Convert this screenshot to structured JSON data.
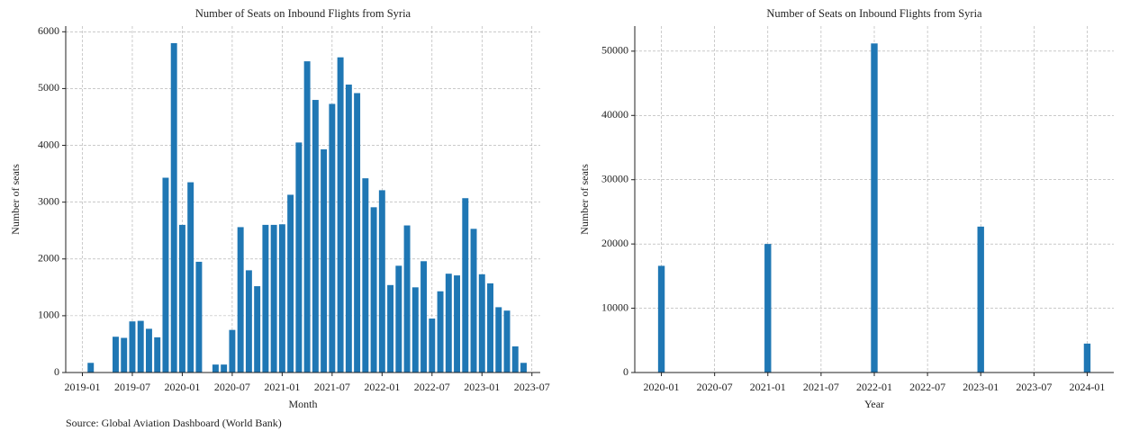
{
  "chart_data": [
    {
      "type": "bar",
      "title": "Number of Seats on Inbound Flights from Syria",
      "x_label": "Month",
      "y_label": "Number of seats",
      "source": "Source: Global Aviation Dashboard (World Bank)",
      "x": [
        "2019-02",
        "2019-05",
        "2019-06",
        "2019-07",
        "2019-08",
        "2019-09",
        "2019-10",
        "2019-11",
        "2019-12",
        "2020-01",
        "2020-02",
        "2020-03",
        "2020-05",
        "2020-06",
        "2020-07",
        "2020-08",
        "2020-09",
        "2020-10",
        "2020-11",
        "2020-12",
        "2021-01",
        "2021-02",
        "2021-03",
        "2021-04",
        "2021-05",
        "2021-06",
        "2021-07",
        "2021-08",
        "2021-09",
        "2021-10",
        "2021-11",
        "2021-12",
        "2022-01",
        "2022-02",
        "2022-03",
        "2022-04",
        "2022-05",
        "2022-06",
        "2022-07",
        "2022-08",
        "2022-09",
        "2022-10",
        "2022-11",
        "2022-12",
        "2023-01",
        "2023-02",
        "2023-03",
        "2023-04",
        "2023-05",
        "2023-06"
      ],
      "values": [
        170,
        630,
        610,
        900,
        910,
        770,
        620,
        3430,
        5800,
        2600,
        3350,
        1950,
        140,
        140,
        750,
        2560,
        1800,
        1520,
        2600,
        2600,
        2610,
        3130,
        4050,
        5480,
        4800,
        3930,
        4730,
        5550,
        5070,
        4920,
        3420,
        2910,
        3210,
        1540,
        1880,
        2590,
        1500,
        1960,
        950,
        1430,
        1740,
        1710,
        3070,
        2530,
        1730,
        1570,
        1150,
        1090,
        460,
        170
      ],
      "color": "#1f77b4",
      "xlim": [
        "2018-11",
        "2023-08"
      ],
      "xticks": [
        "2019-01",
        "2019-07",
        "2020-01",
        "2020-07",
        "2021-01",
        "2021-07",
        "2022-01",
        "2022-07",
        "2023-01",
        "2023-07"
      ],
      "ylim": [
        0,
        6100
      ],
      "yticks": [
        0,
        1000,
        2000,
        3000,
        4000,
        5000,
        6000
      ],
      "grid": true
    },
    {
      "type": "bar",
      "title": "Number of Seats on Inbound Flights from Syria",
      "x_label": "Year",
      "y_label": "Number of seats",
      "x": [
        "2020-01",
        "2021-01",
        "2022-01",
        "2023-01",
        "2024-01"
      ],
      "values": [
        16600,
        20000,
        51200,
        22700,
        4500
      ],
      "color": "#1f77b4",
      "xlim": [
        "2019-10",
        "2024-04"
      ],
      "xticks": [
        "2020-01",
        "2020-07",
        "2021-01",
        "2021-07",
        "2022-01",
        "2022-07",
        "2023-01",
        "2023-07",
        "2024-01"
      ],
      "ylim": [
        0,
        53900
      ],
      "yticks": [
        0,
        10000,
        20000,
        30000,
        40000,
        50000
      ],
      "grid": true
    }
  ]
}
